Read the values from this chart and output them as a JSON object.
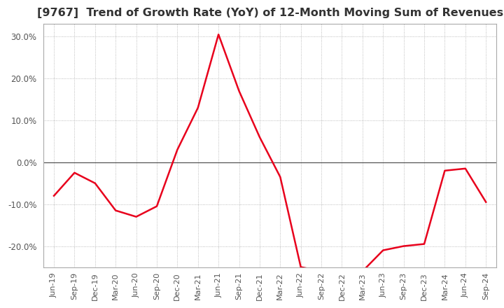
{
  "title": "[9767]  Trend of Growth Rate (YoY) of 12-Month Moving Sum of Revenues",
  "title_fontsize": 11.5,
  "line_color": "#e8001c",
  "background_color": "#ffffff",
  "grid_color": "#aaaaaa",
  "zero_line_color": "#555555",
  "ylim": [
    -25,
    33
  ],
  "yticks": [
    -20,
    -10,
    0,
    10,
    20,
    30
  ],
  "x_labels": [
    "Jun-19",
    "Sep-19",
    "Dec-19",
    "Mar-20",
    "Jun-20",
    "Sep-20",
    "Dec-20",
    "Mar-21",
    "Jun-21",
    "Sep-21",
    "Dec-21",
    "Mar-22",
    "Jun-22",
    "Sep-22",
    "Dec-22",
    "Mar-23",
    "Jun-23",
    "Sep-23",
    "Dec-23",
    "Mar-24",
    "Jun-24",
    "Sep-24"
  ],
  "values": [
    -8.0,
    -2.5,
    -5.0,
    -11.5,
    -13.0,
    -10.5,
    3.0,
    13.0,
    30.5,
    17.0,
    6.0,
    -3.5,
    -25.0,
    -26.0,
    -26.5,
    -26.0,
    -21.0,
    -20.0,
    -19.5,
    -2.0,
    -1.5,
    -9.5
  ]
}
